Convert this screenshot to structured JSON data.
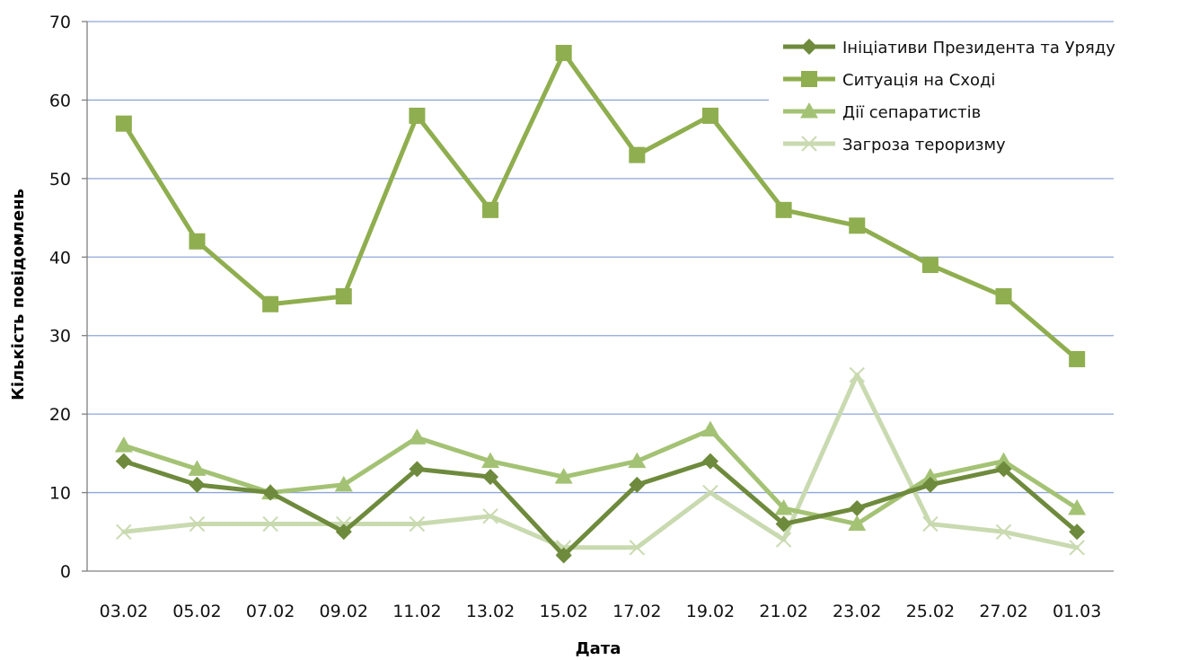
{
  "chart_data": {
    "type": "line",
    "title": "",
    "xlabel": "Дата",
    "ylabel": "Кількість повідомлень",
    "ylim": [
      0,
      70
    ],
    "yticks": [
      "0",
      "10",
      "20",
      "30",
      "40",
      "50",
      "60",
      "70"
    ],
    "grid": true,
    "legend_position": "top-right",
    "categories": [
      "03.02",
      "05.02",
      "07.02",
      "09.02",
      "11.02",
      "13.02",
      "15.02",
      "17.02",
      "19.02",
      "21.02",
      "23.02",
      "25.02",
      "27.02",
      "01.03"
    ],
    "series": [
      {
        "name": "Ініціативи Президента та Уряду",
        "marker": "diamond",
        "color": "#6E8A3C",
        "values": [
          14,
          11,
          10,
          5,
          13,
          12,
          2,
          11,
          14,
          6,
          8,
          11,
          13,
          5
        ]
      },
      {
        "name": "Ситуація на Сході",
        "marker": "square",
        "color": "#8FAE4F",
        "values": [
          57,
          42,
          34,
          35,
          58,
          46,
          66,
          53,
          58,
          46,
          44,
          39,
          35,
          27
        ]
      },
      {
        "name": "Дії сепаратистів",
        "marker": "triangle",
        "color": "#A4C274",
        "values": [
          16,
          13,
          10,
          11,
          17,
          14,
          12,
          14,
          18,
          8,
          6,
          12,
          14,
          8
        ]
      },
      {
        "name": "Загроза тероризму",
        "marker": "x",
        "color": "#C9DAB0",
        "values": [
          5,
          6,
          6,
          6,
          6,
          7,
          3,
          3,
          10,
          4,
          25,
          6,
          5,
          3
        ]
      }
    ]
  }
}
